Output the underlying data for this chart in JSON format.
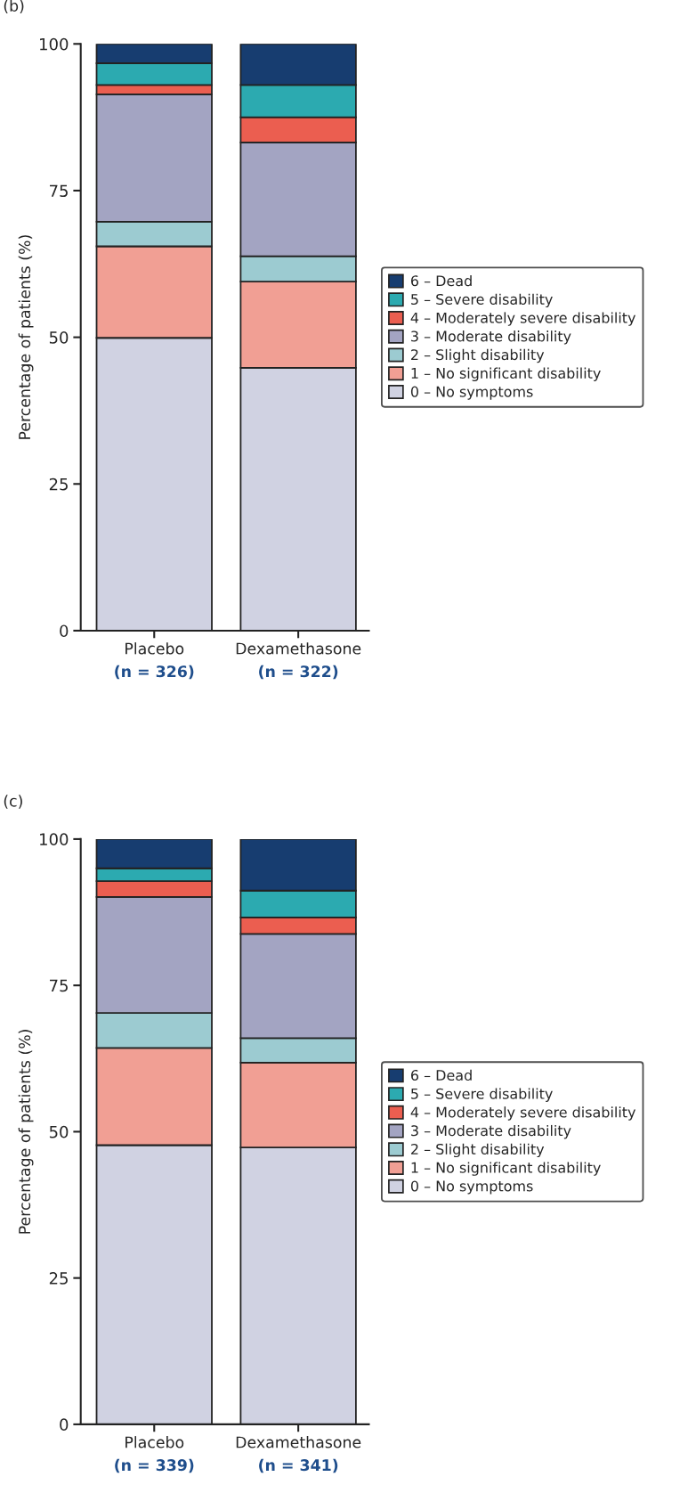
{
  "chart_data": [
    {
      "type": "bar",
      "title": "(b)",
      "ylabel": "Percentage of patients (%)",
      "categories": [
        "Placebo",
        "Dexamethasone"
      ],
      "stacked": true,
      "ylim": [
        0,
        100
      ],
      "yticks": [
        0,
        25,
        50,
        75,
        100
      ],
      "grid": false,
      "legend": "right",
      "annotations": [
        "(n = 326)",
        "(n = 322)"
      ],
      "series": [
        {
          "name": "0 – No symptoms",
          "color": "#d0d2e2",
          "values": [
            49.9,
            44.8
          ]
        },
        {
          "name": "1 – No significant disability",
          "color": "#f19f94",
          "values": [
            15.6,
            14.7
          ]
        },
        {
          "name": "2 – Slight disability",
          "color": "#9ccbd1",
          "values": [
            4.2,
            4.3
          ]
        },
        {
          "name": "3 – Moderate disability",
          "color": "#a3a4c2",
          "values": [
            21.7,
            19.4
          ]
        },
        {
          "name": "4 – Moderately severe disability",
          "color": "#eb5e50",
          "values": [
            1.6,
            4.3
          ]
        },
        {
          "name": "5 – Severe disability",
          "color": "#2caab0",
          "values": [
            3.7,
            5.5
          ]
        },
        {
          "name": "6 – Dead",
          "color": "#173d70",
          "values": [
            3.3,
            7.0
          ]
        }
      ]
    },
    {
      "type": "bar",
      "title": "(c)",
      "ylabel": "Percentage of patients (%)",
      "categories": [
        "Placebo",
        "Dexamethasone"
      ],
      "stacked": true,
      "ylim": [
        0,
        100
      ],
      "yticks": [
        0,
        25,
        50,
        75,
        100
      ],
      "grid": false,
      "legend": "right",
      "annotations": [
        "(n = 339)",
        "(n = 341)"
      ],
      "series": [
        {
          "name": "0 – No symptoms",
          "color": "#d0d2e2",
          "values": [
            47.7,
            47.3
          ]
        },
        {
          "name": "1 – No significant disability",
          "color": "#f19f94",
          "values": [
            16.6,
            14.5
          ]
        },
        {
          "name": "2 – Slight disability",
          "color": "#9ccbd1",
          "values": [
            6.0,
            4.2
          ]
        },
        {
          "name": "3 – Moderate disability",
          "color": "#a3a4c2",
          "values": [
            19.8,
            17.8
          ]
        },
        {
          "name": "4 – Moderately severe disability",
          "color": "#eb5e50",
          "values": [
            2.7,
            2.8
          ]
        },
        {
          "name": "5 – Severe disability",
          "color": "#2caab0",
          "values": [
            2.2,
            4.6
          ]
        },
        {
          "name": "6 – Dead",
          "color": "#173d70",
          "values": [
            5.0,
            8.8
          ]
        }
      ]
    }
  ]
}
